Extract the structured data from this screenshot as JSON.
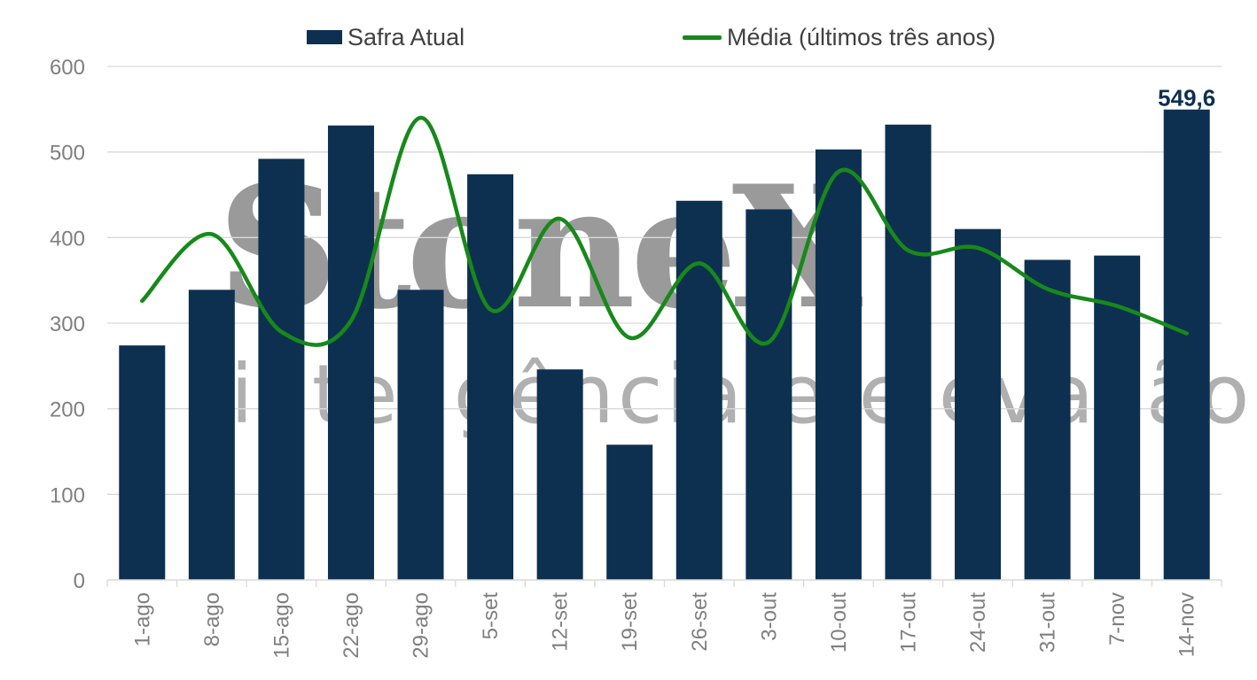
{
  "chart_data": {
    "type": "bar",
    "categories": [
      "1-ago",
      "8-ago",
      "15-ago",
      "22-ago",
      "29-ago",
      "5-set",
      "12-set",
      "19-set",
      "26-set",
      "3-out",
      "10-out",
      "17-out",
      "24-out",
      "31-out",
      "7-nov",
      "14-nov"
    ],
    "series": [
      {
        "name": "Safra Atual",
        "type": "bar",
        "color": "#0d3050",
        "values": [
          274,
          339,
          492,
          531,
          339,
          474,
          246,
          158,
          443,
          433,
          503,
          532,
          410,
          374,
          379,
          549.6
        ]
      },
      {
        "name": "Média (últimos três anos)",
        "type": "line",
        "color": "#17891a",
        "values": [
          326,
          404,
          290,
          303,
          540,
          316,
          422,
          283,
          370,
          278,
          477,
          385,
          388,
          340,
          320,
          288
        ]
      }
    ],
    "data_labels": [
      {
        "series": 0,
        "index": 15,
        "text": "549,6"
      }
    ],
    "ylim": [
      0,
      600
    ],
    "yticks": [
      0,
      100,
      200,
      300,
      400,
      500,
      600
    ],
    "grid": true,
    "legend_position": "top",
    "xlabel": "",
    "ylabel": ""
  },
  "watermark": {
    "brand": "StoneX",
    "tagline": "inteligência e elevação"
  },
  "colors": {
    "bar": "#0d3050",
    "line": "#17891a",
    "grid": "#d9d9d9",
    "axis_text": "#7f7f7f",
    "data_label": "#0d3050"
  }
}
